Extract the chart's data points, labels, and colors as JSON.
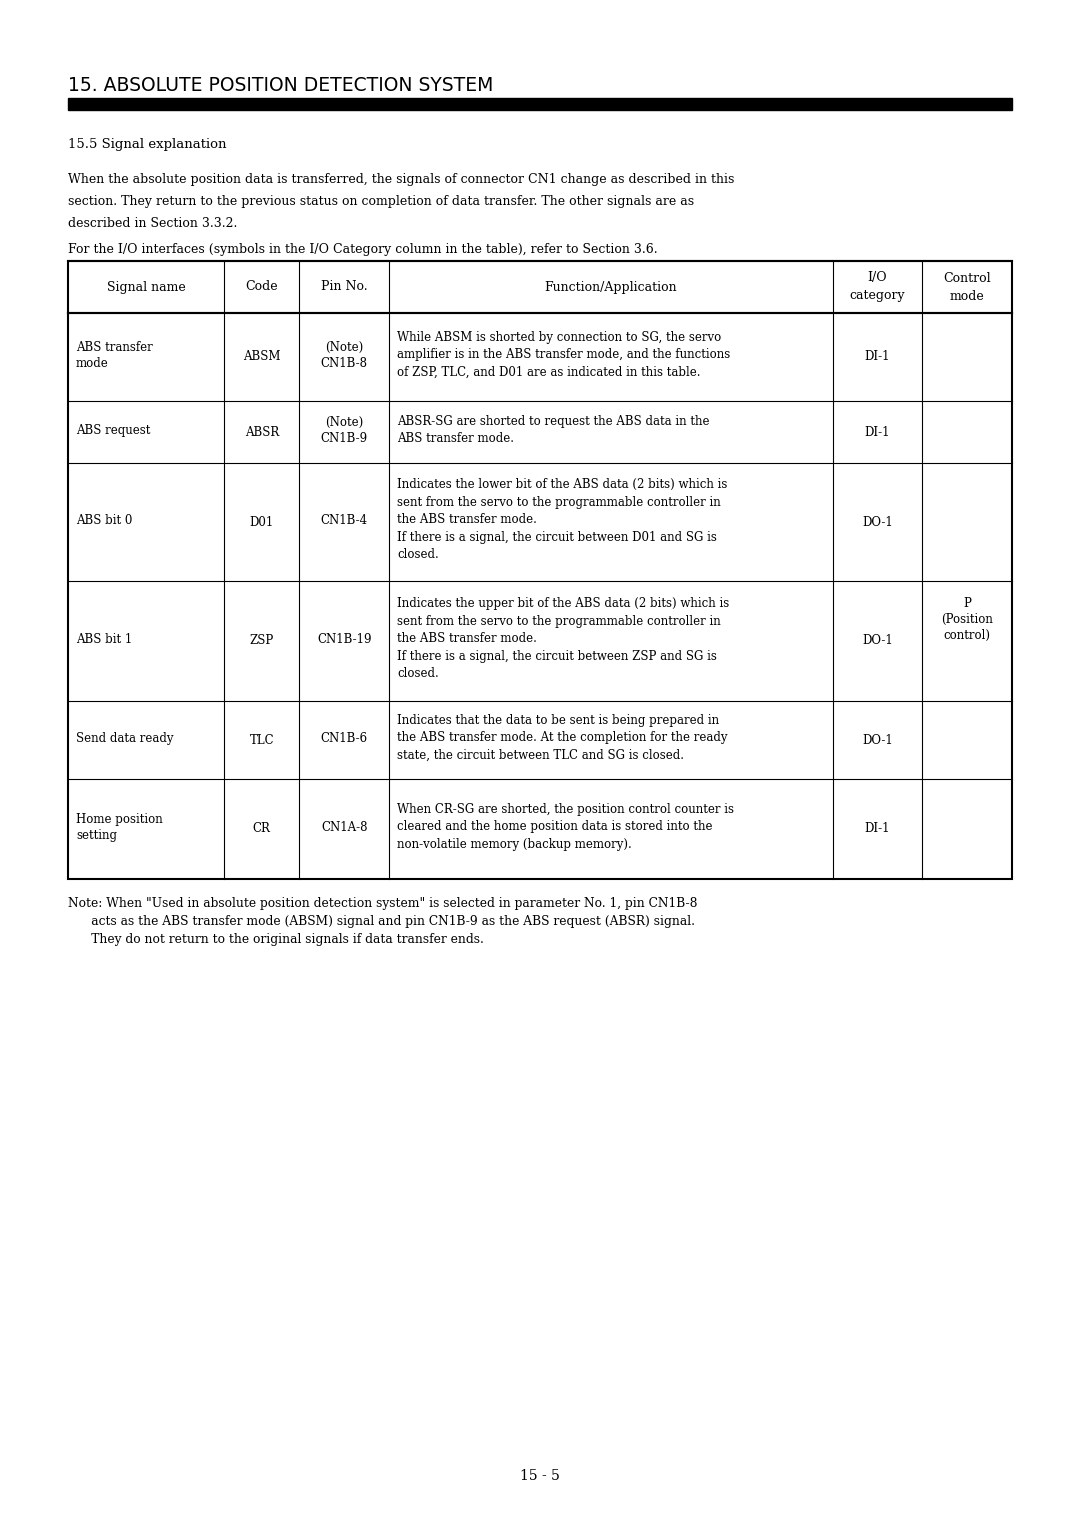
{
  "page_title": "15. ABSOLUTE POSITION DETECTION SYSTEM",
  "section_title": "15.5 Signal explanation",
  "para1_lines": [
    "When the absolute position data is transferred, the signals of connector CN1 change as described in this",
    "section. They return to the previous status on completion of data transfer. The other signals are as",
    "described in Section 3.3.2."
  ],
  "para2": "For the I/O interfaces (symbols in the I/O Category column in the table), refer to Section 3.6.",
  "page_number": "15 - 5",
  "note_lines": [
    "Note: When \"Used in absolute position detection system\" is selected in parameter No. 1, pin CN1B-8",
    "      acts as the ABS transfer mode (ABSM) signal and pin CN1B-9 as the ABS request (ABSR) signal.",
    "      They do not return to the original signals if data transfer ends."
  ],
  "table_headers": [
    "Signal name",
    "Code",
    "Pin No.",
    "Function/Application",
    "I/O\ncategory",
    "Control\nmode"
  ],
  "rows": [
    {
      "signal_name": "ABS transfer\nmode",
      "code": "ABSM",
      "pin_no": "(Note)\nCN1B-8",
      "func_lines": [
        "While ABSM is shorted by connection to SG, the servo",
        "amplifier is in the ABS transfer mode, and the functions",
        "of ZSP, TLC, and D01 are as indicated in this table."
      ],
      "io": "DI-1"
    },
    {
      "signal_name": "ABS request",
      "code": "ABSR",
      "pin_no": "(Note)\nCN1B-9",
      "func_lines": [
        "ABSR-SG are shorted to request the ABS data in the",
        "ABS transfer mode."
      ],
      "io": "DI-1"
    },
    {
      "signal_name": "ABS bit 0",
      "code": "D01",
      "pin_no": "CN1B-4",
      "func_lines": [
        "Indicates the lower bit of the ABS data (2 bits) which is",
        "sent from the servo to the programmable controller in",
        "the ABS transfer mode.",
        "If there is a signal, the circuit between D01 and SG is",
        "closed."
      ],
      "io": "DO-1"
    },
    {
      "signal_name": "ABS bit 1",
      "code": "ZSP",
      "pin_no": "CN1B-19",
      "func_lines": [
        "Indicates the upper bit of the ABS data (2 bits) which is",
        "sent from the servo to the programmable controller in",
        "the ABS transfer mode.",
        "If there is a signal, the circuit between ZSP and SG is",
        "closed."
      ],
      "io": "DO-1"
    },
    {
      "signal_name": "Send data ready",
      "code": "TLC",
      "pin_no": "CN1B-6",
      "func_lines": [
        "Indicates that the data to be sent is being prepared in",
        "the ABS transfer mode. At the completion for the ready",
        "state, the circuit between TLC and SG is closed."
      ],
      "io": "DO-1"
    },
    {
      "signal_name": "Home position\nsetting",
      "code": "CR",
      "pin_no": "CN1A-8",
      "func_lines": [
        "When CR-SG are shorted, the position control counter is",
        "cleared and the home position data is stored into the",
        "non-volatile memory (backup memory)."
      ],
      "io": "DI-1"
    }
  ],
  "control_mode_label": [
    "P",
    "(Position",
    "control)"
  ],
  "background_color": "#ffffff",
  "text_color": "#000000"
}
